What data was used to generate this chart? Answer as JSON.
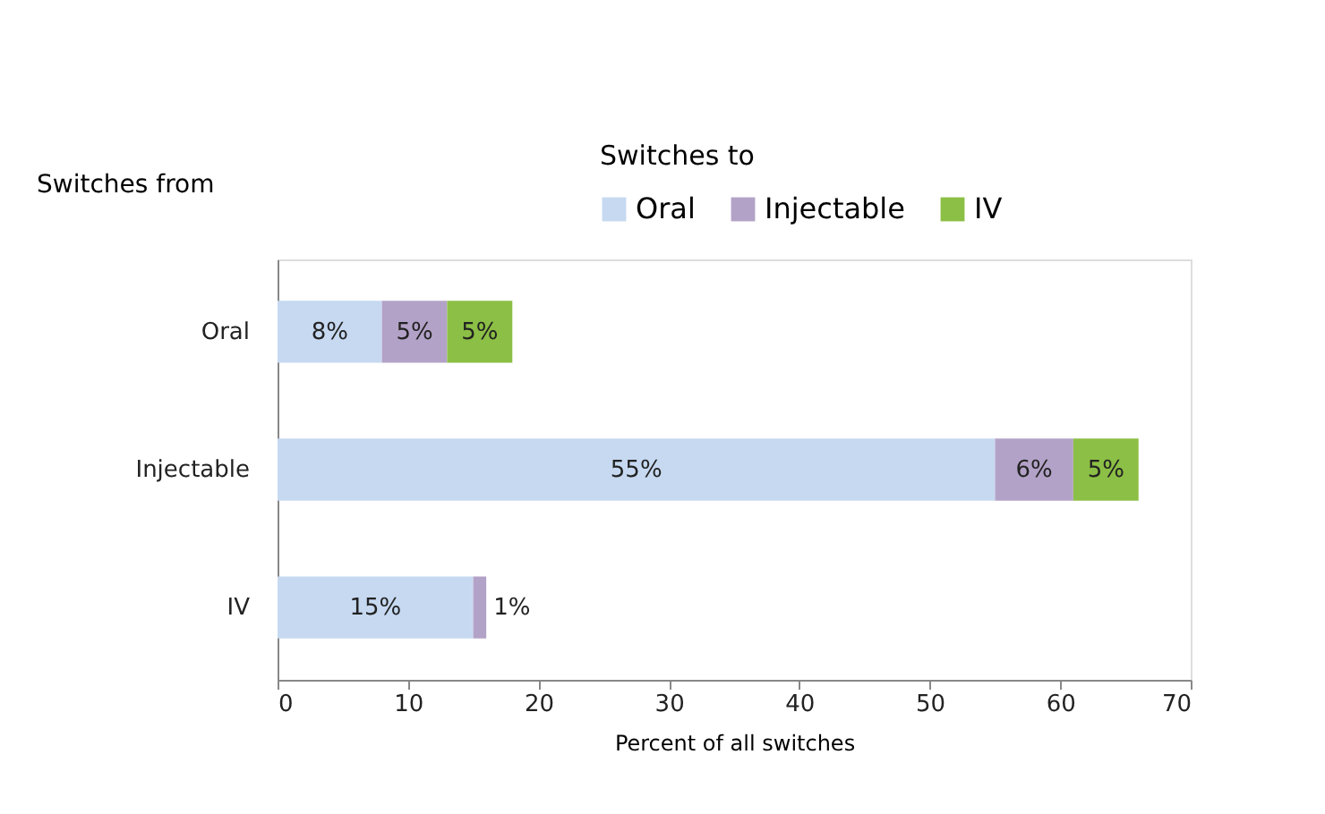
{
  "chart_data": {
    "type": "bar",
    "orientation": "horizontal",
    "stacked": true,
    "ylabel": "Switches from",
    "xlabel": "Percent of all switches",
    "legend_title": "Switches to",
    "legend": "top right",
    "grid": false,
    "categories": [
      "Oral",
      "Injectable",
      "IV"
    ],
    "xlim": [
      0,
      70
    ],
    "xticks": [
      0,
      10,
      20,
      30,
      40,
      50,
      60,
      70
    ],
    "series": [
      {
        "name": "Oral",
        "color": "#c6d9f1",
        "values": [
          8,
          55,
          15
        ],
        "value_labels": [
          "8%",
          "55%",
          "15%"
        ]
      },
      {
        "name": "Injectable",
        "color": "#b3a2c7",
        "values": [
          5,
          6,
          1
        ],
        "value_labels": [
          "5%",
          "6%",
          "1%"
        ]
      },
      {
        "name": "IV",
        "color": "#8cbf45",
        "values": [
          5,
          5,
          null
        ],
        "value_labels": [
          "5%",
          "5%",
          null
        ]
      }
    ]
  }
}
